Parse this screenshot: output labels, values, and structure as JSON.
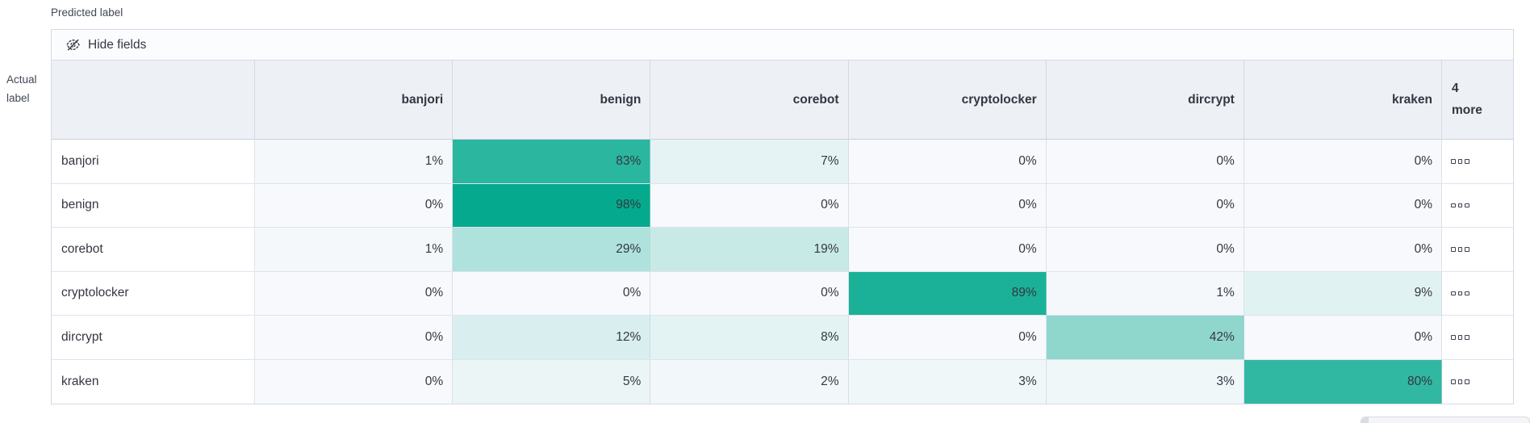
{
  "axes": {
    "predicted_label": "Predicted label",
    "actual_label_line1": "Actual",
    "actual_label_line2": "label"
  },
  "toolbar": {
    "hide_fields_label": "Hide fields"
  },
  "matrix": {
    "columns": [
      "banjori",
      "benign",
      "corebot",
      "cryptolocker",
      "dircrypt",
      "kraken"
    ],
    "more_column": {
      "line1": "4",
      "line2": "more"
    },
    "rows": [
      {
        "label": "banjori",
        "display": [
          "1%",
          "83%",
          "7%",
          "0%",
          "0%",
          "0%"
        ]
      },
      {
        "label": "benign",
        "display": [
          "0%",
          "98%",
          "0%",
          "0%",
          "0%",
          "0%"
        ]
      },
      {
        "label": "corebot",
        "display": [
          "1%",
          "29%",
          "19%",
          "0%",
          "0%",
          "0%"
        ]
      },
      {
        "label": "cryptolocker",
        "display": [
          "0%",
          "0%",
          "0%",
          "89%",
          "1%",
          "9%"
        ]
      },
      {
        "label": "dircrypt",
        "display": [
          "0%",
          "12%",
          "8%",
          "0%",
          "42%",
          "0%"
        ]
      },
      {
        "label": "kraken",
        "display": [
          "0%",
          "5%",
          "2%",
          "3%",
          "3%",
          "80%"
        ]
      }
    ]
  },
  "chart_data": {
    "type": "heatmap",
    "xlabel": "Predicted label",
    "ylabel": "Actual label",
    "x_categories": [
      "banjori",
      "benign",
      "corebot",
      "cryptolocker",
      "dircrypt",
      "kraken"
    ],
    "y_categories": [
      "banjori",
      "benign",
      "corebot",
      "cryptolocker",
      "dircrypt",
      "kraken"
    ],
    "values_percent": [
      [
        1,
        83,
        7,
        0,
        0,
        0
      ],
      [
        0,
        98,
        0,
        0,
        0,
        0
      ],
      [
        1,
        29,
        19,
        0,
        0,
        0
      ],
      [
        0,
        0,
        0,
        89,
        1,
        9
      ],
      [
        0,
        12,
        8,
        0,
        42,
        0
      ],
      [
        0,
        5,
        2,
        3,
        3,
        80
      ]
    ],
    "hidden_columns_note": "4 more"
  },
  "colors": {
    "heat_base": "#00A88C",
    "cell_zero_bg": "#F7F9FC",
    "header_bg": "#EDF0F5",
    "panel_border": "#D3DAE6",
    "text": "#343741"
  }
}
